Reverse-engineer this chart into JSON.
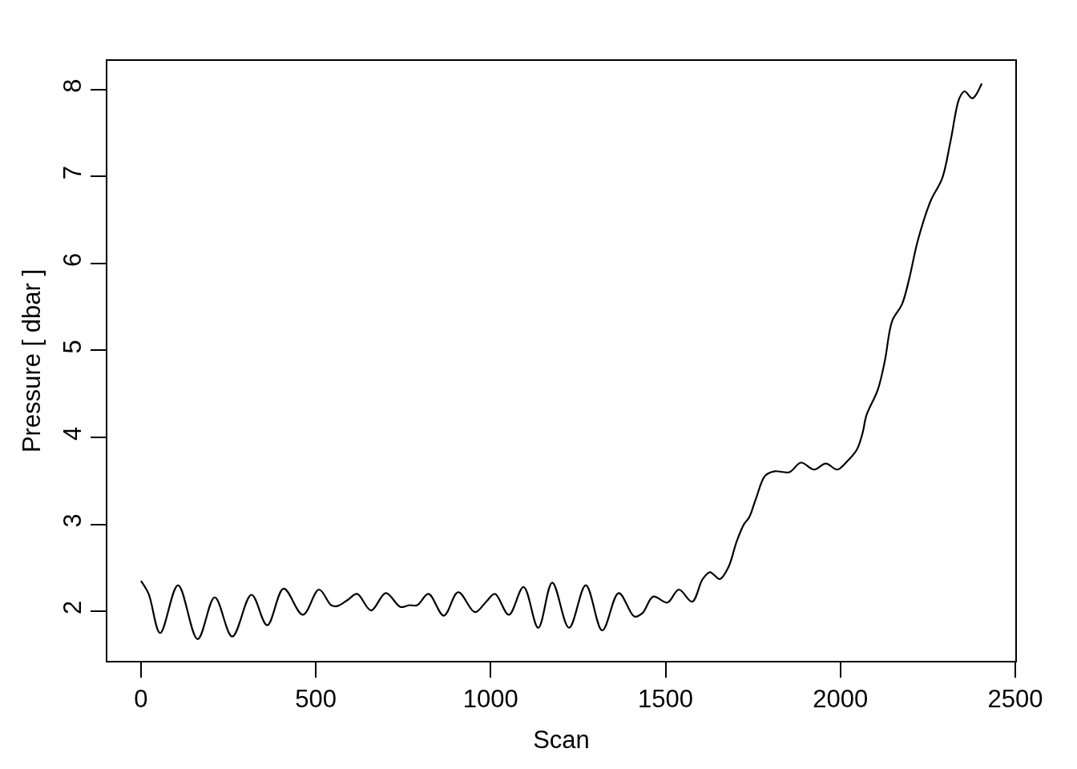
{
  "chart_data": {
    "type": "line",
    "xlabel": "Scan",
    "ylabel": "Pressure [ dbar ]",
    "x": [
      0,
      22,
      55,
      106,
      162,
      211,
      261,
      316,
      361,
      408,
      463,
      509,
      544,
      561,
      591,
      618,
      658,
      700,
      742,
      767,
      790,
      822,
      866,
      907,
      955,
      987,
      1012,
      1052,
      1094,
      1136,
      1176,
      1224,
      1272,
      1319,
      1366,
      1411,
      1434,
      1465,
      1505,
      1538,
      1576,
      1606,
      1627,
      1655,
      1680,
      1703,
      1724,
      1739,
      1758,
      1785,
      1812,
      1854,
      1887,
      1925,
      1958,
      1991,
      2018,
      2047,
      2064,
      2074,
      2107,
      2127,
      2148,
      2176,
      2197,
      2221,
      2258,
      2291,
      2315,
      2340,
      2355,
      2377,
      2404
    ],
    "series": [
      {
        "color": "#000000",
        "values": [
          2.35,
          2.2,
          1.75,
          2.3,
          1.68,
          2.16,
          1.71,
          2.19,
          1.84,
          2.26,
          1.96,
          2.25,
          2.07,
          2.06,
          2.13,
          2.2,
          2.01,
          2.21,
          2.05,
          2.07,
          2.07,
          2.2,
          1.95,
          2.22,
          1.99,
          2.11,
          2.2,
          1.96,
          2.28,
          1.81,
          2.33,
          1.81,
          2.3,
          1.78,
          2.21,
          1.94,
          1.98,
          2.17,
          2.1,
          2.25,
          2.11,
          2.37,
          2.45,
          2.37,
          2.51,
          2.8,
          3.0,
          3.08,
          3.29,
          3.56,
          3.61,
          3.6,
          3.71,
          3.63,
          3.7,
          3.63,
          3.72,
          3.86,
          4.06,
          4.25,
          4.55,
          4.88,
          5.34,
          5.53,
          5.83,
          6.26,
          6.72,
          6.98,
          7.41,
          7.9,
          7.98,
          7.9,
          8.07
        ]
      }
    ],
    "xlim": [
      -96,
      2500
    ],
    "ylim": [
      1.43,
      8.33
    ],
    "xticks": [
      0,
      500,
      1000,
      1500,
      2000,
      2500
    ],
    "yticks": [
      2,
      3,
      4,
      5,
      6,
      7,
      8
    ],
    "grid": false,
    "line_style": "solid"
  }
}
